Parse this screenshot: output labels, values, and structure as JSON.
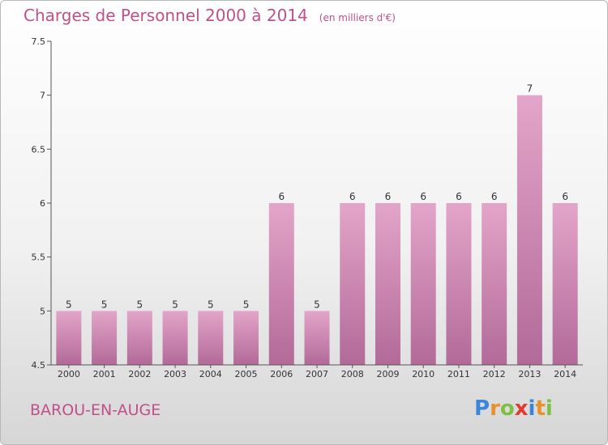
{
  "header": {
    "title": "Charges de Personnel 2000 à 2014",
    "subtitle": "(en milliers d'€)"
  },
  "commune": "BAROU-EN-AUGE",
  "logo": {
    "text": "Proxiti",
    "letters": [
      {
        "ch": "P",
        "color": "#3a86d9"
      },
      {
        "ch": "r",
        "color": "#e8902a"
      },
      {
        "ch": "o",
        "color": "#7cc144"
      },
      {
        "ch": "x",
        "color": "#e23a2e"
      },
      {
        "ch": "i",
        "color": "#3a86d9"
      },
      {
        "ch": "t",
        "color": "#e8902a"
      },
      {
        "ch": "i",
        "color": "#7cc144"
      }
    ]
  },
  "colors": {
    "bar_top": "#e3a5c9",
    "bar_bottom": "#b26a98",
    "axis": "#555555",
    "text": "#333333"
  },
  "chart_data": {
    "type": "bar",
    "title": "Charges de Personnel 2000 à 2014",
    "subtitle": "(en milliers d'€)",
    "categories": [
      "2000",
      "2001",
      "2002",
      "2003",
      "2004",
      "2005",
      "2006",
      "2007",
      "2008",
      "2009",
      "2010",
      "2011",
      "2012",
      "2013",
      "2014"
    ],
    "values": [
      5,
      5,
      5,
      5,
      5,
      5,
      6,
      5,
      6,
      6,
      6,
      6,
      6,
      7,
      6
    ],
    "data_labels": [
      "5",
      "5",
      "5",
      "5",
      "5",
      "5",
      "6",
      "5",
      "6",
      "6",
      "6",
      "6",
      "6",
      "7",
      "6"
    ],
    "ylim": [
      4.5,
      7.5
    ],
    "yticks": [
      4.5,
      5,
      5.5,
      6,
      6.5,
      7,
      7.5
    ],
    "ytick_labels": [
      "4.5",
      "5",
      "5.5",
      "6",
      "6.5",
      "7",
      "7.5"
    ],
    "grid": false,
    "legend": "none"
  }
}
